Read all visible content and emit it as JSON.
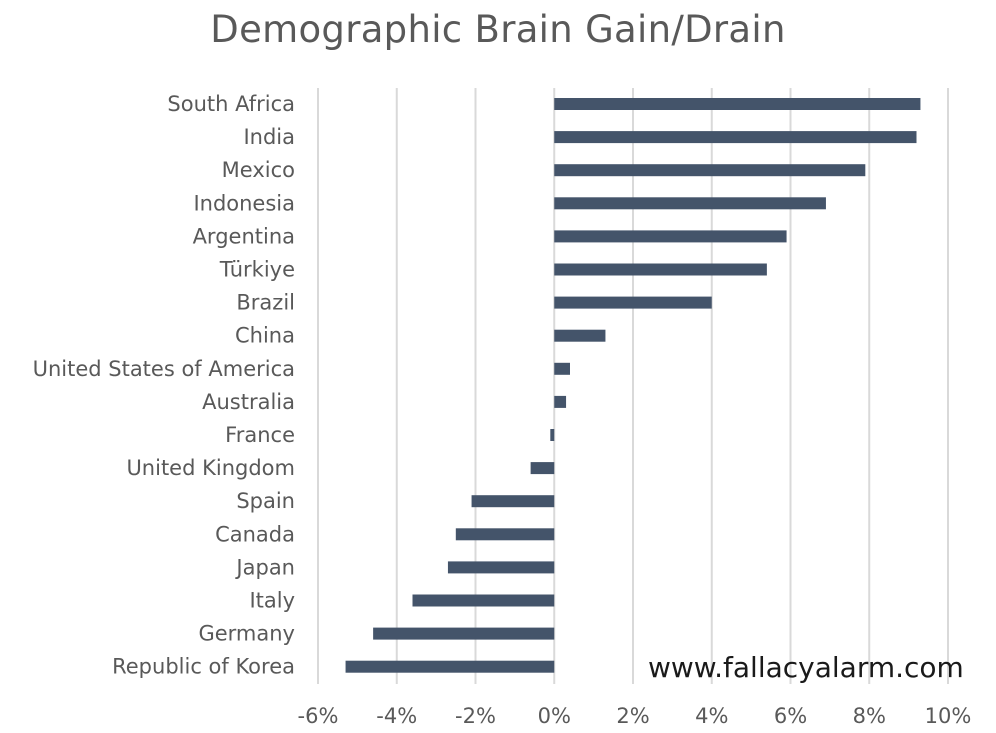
{
  "chart_data": {
    "type": "bar",
    "orientation": "horizontal",
    "title": "Demographic Brain Gain/Drain",
    "categories": [
      "South Africa",
      "India",
      "Mexico",
      "Indonesia",
      "Argentina",
      "Türkiye",
      "Brazil",
      "China",
      "United States of America",
      "Australia",
      "France",
      "United Kingdom",
      "Spain",
      "Canada",
      "Japan",
      "Italy",
      "Germany",
      "Republic of Korea"
    ],
    "values": [
      9.3,
      9.2,
      7.9,
      6.9,
      5.9,
      5.4,
      4.0,
      1.3,
      0.4,
      0.3,
      -0.1,
      -0.6,
      -2.1,
      -2.5,
      -2.7,
      -3.6,
      -4.6,
      -5.3
    ],
    "xlim": [
      -6,
      10
    ],
    "xticks": [
      -6,
      -4,
      -2,
      0,
      2,
      4,
      6,
      8,
      10
    ],
    "xtick_labels": [
      "-6%",
      "-4%",
      "-2%",
      "0%",
      "2%",
      "4%",
      "6%",
      "8%",
      "10%"
    ],
    "xlabel": "",
    "ylabel": "",
    "grid": "vertical",
    "legend": "none",
    "bar_color": "#44546a",
    "grid_color": "#d9d9d9"
  },
  "watermark": "www.fallacyalarm.com"
}
